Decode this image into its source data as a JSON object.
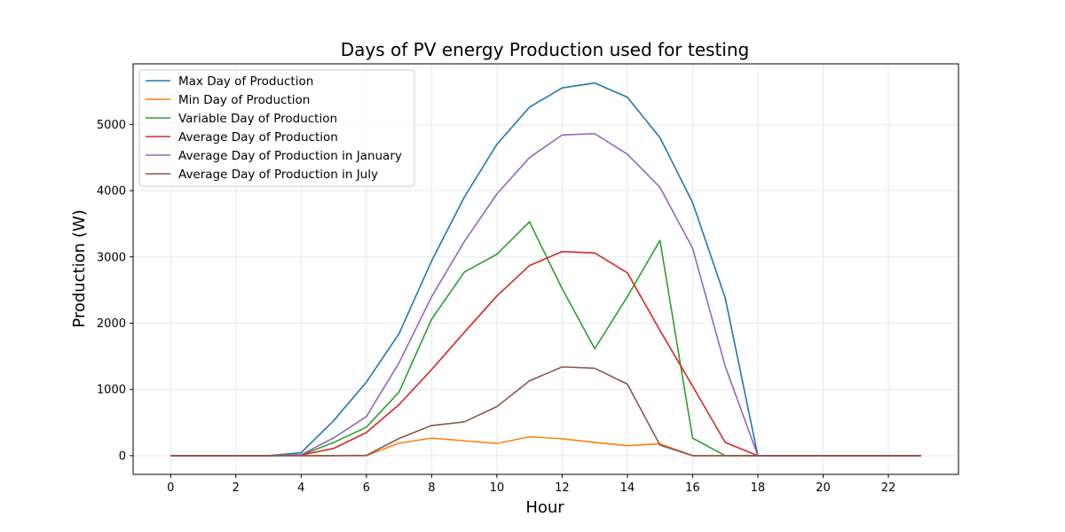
{
  "chart_data": {
    "type": "line",
    "title": "Days of PV energy Production used for testing",
    "xlabel": "Hour",
    "ylabel": "Production (W)",
    "xlim": [
      -1.15,
      24.15
    ],
    "ylim": [
      -282,
      5914
    ],
    "xticks": [
      0,
      2,
      4,
      6,
      8,
      10,
      12,
      14,
      16,
      18,
      20,
      22
    ],
    "xtick_labels": [
      "0",
      "2",
      "4",
      "6",
      "8",
      "10",
      "12",
      "14",
      "16",
      "18",
      "20",
      "22"
    ],
    "yticks": [
      0,
      1000,
      2000,
      3000,
      4000,
      5000
    ],
    "ytick_labels": [
      "0",
      "1000",
      "2000",
      "3000",
      "4000",
      "5000"
    ],
    "grid": true,
    "legend_position": "upper-left",
    "x": [
      0,
      1,
      2,
      3,
      4,
      5,
      6,
      7,
      8,
      9,
      10,
      11,
      12,
      13,
      14,
      15,
      16,
      17,
      18,
      19,
      20,
      21,
      22,
      23
    ],
    "series": [
      {
        "name": "Max Day of Production",
        "color": "#1f77b4",
        "values": [
          0,
          0,
          0,
          0,
          45,
          530,
          1110,
          1840,
          2940,
          3900,
          4700,
          5260,
          5550,
          5625,
          5410,
          4800,
          3820,
          2380,
          0,
          0,
          0,
          0,
          0,
          0
        ]
      },
      {
        "name": "Min Day of Production",
        "color": "#ff7f0e",
        "values": [
          0,
          0,
          0,
          0,
          0,
          0,
          0,
          190,
          265,
          225,
          185,
          285,
          255,
          200,
          150,
          180,
          0,
          0,
          0,
          0,
          0,
          0,
          0,
          0
        ]
      },
      {
        "name": "Variable Day of Production",
        "color": "#2ca02c",
        "values": [
          0,
          0,
          0,
          0,
          10,
          200,
          430,
          960,
          2060,
          2770,
          3040,
          3530,
          2520,
          1615,
          2400,
          3250,
          265,
          0,
          0,
          0,
          0,
          0,
          0,
          0
        ]
      },
      {
        "name": "Average Day of Production",
        "color": "#d62728",
        "values": [
          0,
          0,
          0,
          0,
          10,
          110,
          350,
          770,
          1300,
          1860,
          2410,
          2870,
          3080,
          3060,
          2760,
          1890,
          1050,
          200,
          0,
          0,
          0,
          0,
          0,
          0
        ]
      },
      {
        "name": "Average Day of Production in January",
        "color": "#9467bd",
        "values": [
          0,
          0,
          0,
          0,
          15,
          270,
          590,
          1400,
          2400,
          3230,
          3950,
          4500,
          4840,
          4860,
          4550,
          4050,
          3130,
          1350,
          0,
          0,
          0,
          0,
          0,
          0
        ]
      },
      {
        "name": "Average Day of Production in July",
        "color": "#8c564b",
        "values": [
          0,
          0,
          0,
          0,
          0,
          0,
          5,
          260,
          455,
          510,
          740,
          1130,
          1340,
          1320,
          1080,
          160,
          0,
          0,
          0,
          0,
          0,
          0,
          0,
          0
        ]
      }
    ]
  }
}
